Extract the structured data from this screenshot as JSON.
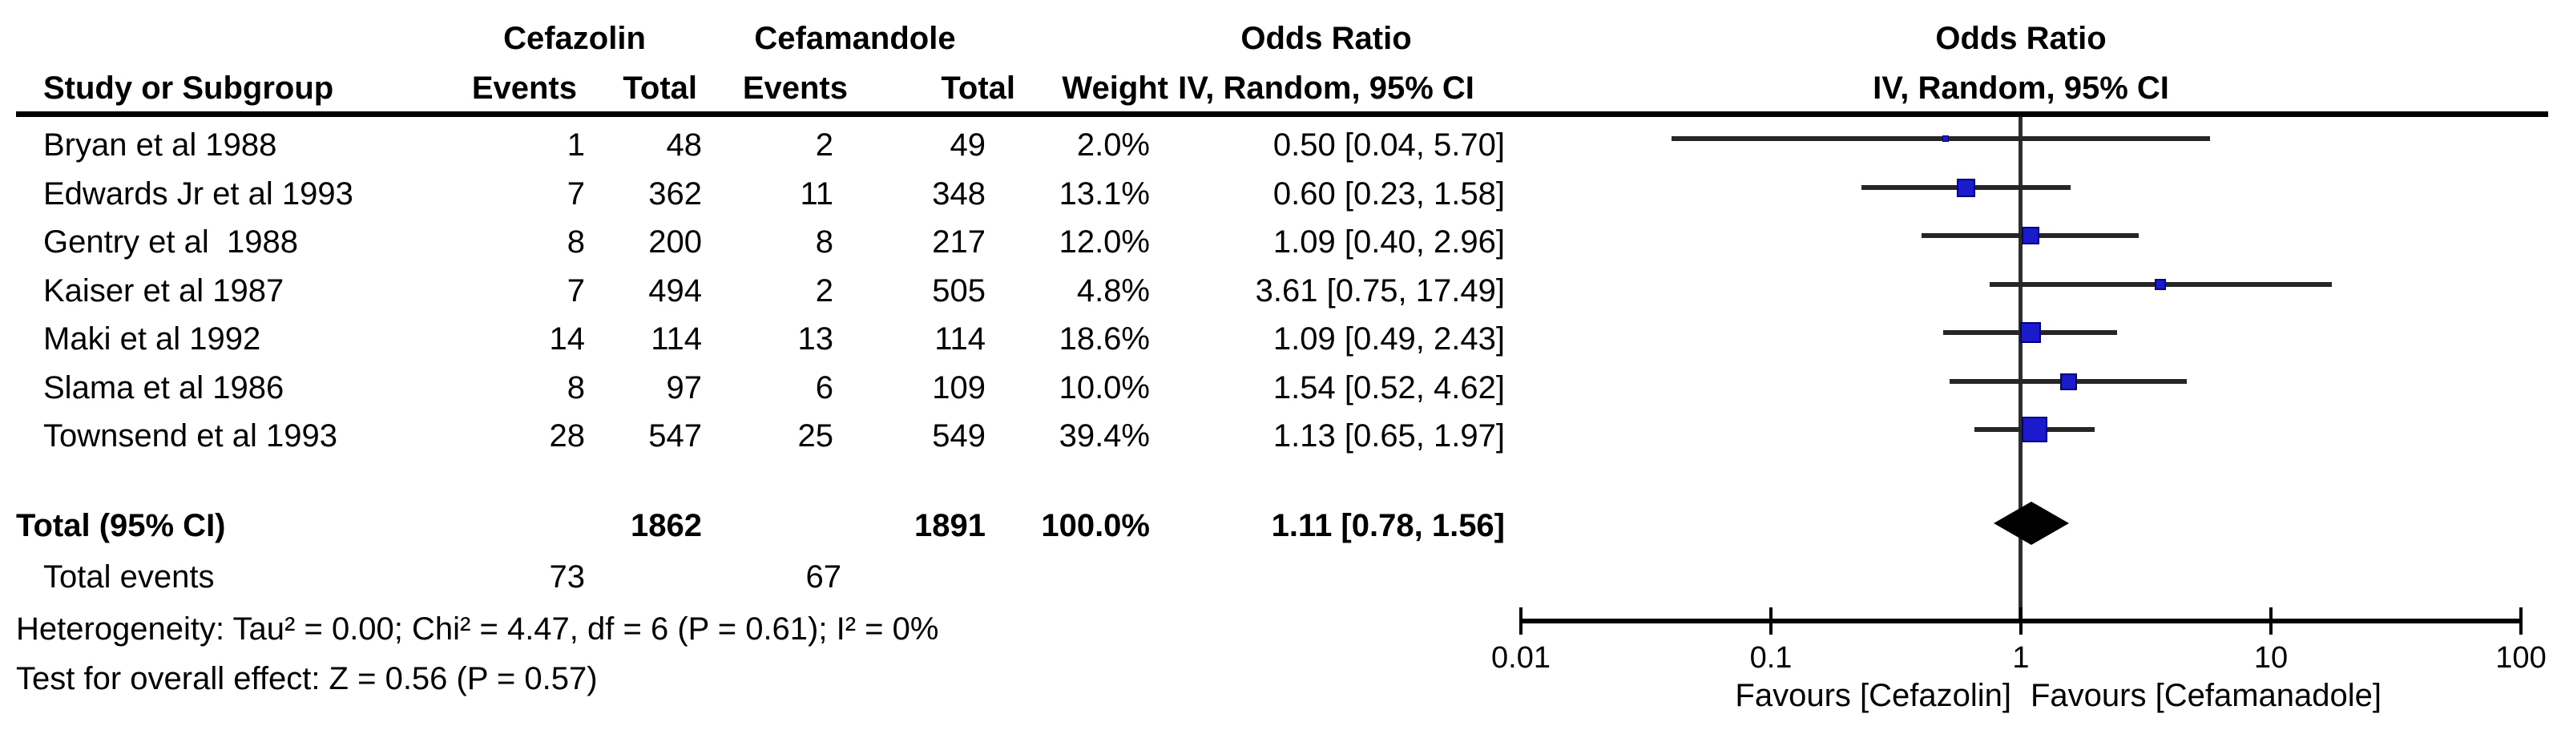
{
  "chart_data": {
    "type": "forest",
    "effect_measure": "Odds Ratio",
    "method": "IV, Random, 95% CI",
    "x_scale": "log10",
    "xlim": [
      0.01,
      100
    ],
    "x_ticks": [
      "0.01",
      "0.1",
      "1",
      "10",
      "100"
    ],
    "legend_position": "none",
    "grid": false,
    "header": {
      "group1": "Cefazolin",
      "group2": "Cefamandole",
      "or_text_col": "Odds Ratio",
      "or_plot_col": "Odds Ratio",
      "study": "Study or Subgroup",
      "events1": "Events",
      "total1": "Total",
      "events2": "Events",
      "total2": "Total",
      "weight": "Weight",
      "method_text_col": "IV, Random, 95% CI",
      "method_plot_col": "IV, Random, 95% CI"
    },
    "studies": [
      {
        "name": "Bryan et al 1988",
        "events1": "1",
        "total1": "48",
        "events2": "2",
        "total2": "49",
        "weight_label": "2.0%",
        "weight_pct": 2.0,
        "or": 0.5,
        "ci_low": 0.04,
        "ci_high": 5.7,
        "or_label": "0.50 [0.04, 5.70]"
      },
      {
        "name": "Edwards Jr et al 1993",
        "events1": "7",
        "total1": "362",
        "events2": "11",
        "total2": "348",
        "weight_label": "13.1%",
        "weight_pct": 13.1,
        "or": 0.6,
        "ci_low": 0.23,
        "ci_high": 1.58,
        "or_label": "0.60 [0.23, 1.58]"
      },
      {
        "name": "Gentry et al  1988",
        "events1": "8",
        "total1": "200",
        "events2": "8",
        "total2": "217",
        "weight_label": "12.0%",
        "weight_pct": 12.0,
        "or": 1.09,
        "ci_low": 0.4,
        "ci_high": 2.96,
        "or_label": "1.09 [0.40, 2.96]"
      },
      {
        "name": "Kaiser et al 1987",
        "events1": "7",
        "total1": "494",
        "events2": "2",
        "total2": "505",
        "weight_label": "4.8%",
        "weight_pct": 4.8,
        "or": 3.61,
        "ci_low": 0.75,
        "ci_high": 17.49,
        "or_label": "3.61 [0.75, 17.49]"
      },
      {
        "name": "Maki et al 1992",
        "events1": "14",
        "total1": "114",
        "events2": "13",
        "total2": "114",
        "weight_label": "18.6%",
        "weight_pct": 18.6,
        "or": 1.09,
        "ci_low": 0.49,
        "ci_high": 2.43,
        "or_label": "1.09 [0.49, 2.43]"
      },
      {
        "name": "Slama et al 1986",
        "events1": "8",
        "total1": "97",
        "events2": "6",
        "total2": "109",
        "weight_label": "10.0%",
        "weight_pct": 10.0,
        "or": 1.54,
        "ci_low": 0.52,
        "ci_high": 4.62,
        "or_label": "1.54 [0.52, 4.62]"
      },
      {
        "name": "Townsend et al 1993",
        "events1": "28",
        "total1": "547",
        "events2": "25",
        "total2": "549",
        "weight_label": "39.4%",
        "weight_pct": 39.4,
        "or": 1.13,
        "ci_low": 0.65,
        "ci_high": 1.97,
        "or_label": "1.13 [0.65, 1.97]"
      }
    ],
    "total": {
      "label": "Total (95% CI)",
      "total1": "1862",
      "total2": "1891",
      "weight_label": "100.0%",
      "or": 1.11,
      "ci_low": 0.78,
      "ci_high": 1.56,
      "or_label": "1.11 [0.78, 1.56]"
    },
    "total_events": {
      "label": "Total events",
      "events1": "73",
      "events2": "67"
    },
    "heterogeneity": "Heterogeneity: Tau² = 0.00; Chi² = 4.47, df = 6 (P = 0.61); I² = 0%",
    "overall_effect": "Test for overall effect: Z = 0.56 (P = 0.57)",
    "favours_left": "Favours [Cefazolin]",
    "favours_right": "Favours [Cefamanadole]"
  },
  "colors": {
    "square_fill": "#1b1acd",
    "square_border": "#000082",
    "diamond": "#000000",
    "ci_line": "#262626",
    "axis": "#000000",
    "text": "#000000"
  }
}
